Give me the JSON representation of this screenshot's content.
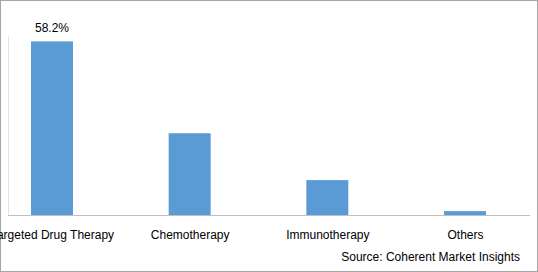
{
  "chart_data": {
    "type": "bar",
    "categories": [
      "Targeted Drug Therapy",
      "Chemotherapy",
      "Immunotherapy",
      "Others"
    ],
    "values": [
      58.2,
      27.4,
      11.7,
      1.3
    ],
    "value_labels": [
      "58.2%",
      null,
      null,
      null
    ],
    "data_labels": true,
    "color": "#5b9bd5",
    "ylim": [
      0,
      60
    ],
    "yticks": [
      0,
      60
    ],
    "tick_labels": "x",
    "grid": false,
    "source": "Source: Coherent Market Insights"
  }
}
